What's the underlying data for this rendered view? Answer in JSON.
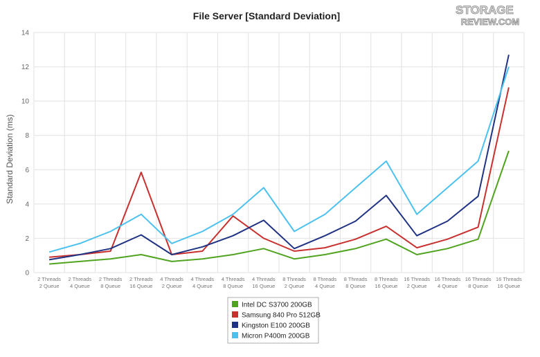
{
  "logo": {
    "line1": "STORAGE",
    "line2": "REVIEW.COM"
  },
  "chart_data": {
    "type": "line",
    "title": "File Server [Standard Deviation]",
    "xlabel": "",
    "ylabel": "Standard Deviation (ms)",
    "ylim": [
      0,
      14
    ],
    "yticks": [
      0,
      2,
      4,
      6,
      8,
      10,
      12,
      14
    ],
    "grid": true,
    "legend_position": "bottom-center",
    "categories": [
      [
        "2 Threads",
        "2 Queue"
      ],
      [
        "2 Threads",
        "4 Queue"
      ],
      [
        "2 Threads",
        "8 Queue"
      ],
      [
        "2 Threads",
        "16 Queue"
      ],
      [
        "4 Threads",
        "2 Queue"
      ],
      [
        "4 Threads",
        "4 Queue"
      ],
      [
        "4 Threads",
        "8 Queue"
      ],
      [
        "4 Threads",
        "16 Queue"
      ],
      [
        "8 Threads",
        "2 Queue"
      ],
      [
        "8 Threads",
        "4 Queue"
      ],
      [
        "8 Threads",
        "8 Queue"
      ],
      [
        "8 Threads",
        "16 Queue"
      ],
      [
        "16 Threads",
        "2 Queue"
      ],
      [
        "16 Threads",
        "4 Queue"
      ],
      [
        "16 Threads",
        "8 Queue"
      ],
      [
        "16 Threads",
        "16 Queue"
      ]
    ],
    "series": [
      {
        "name": "Intel DC S3700 200GB",
        "color": "#4fa31e",
        "values": [
          0.5,
          0.65,
          0.8,
          1.05,
          0.65,
          0.8,
          1.05,
          1.4,
          0.8,
          1.05,
          1.4,
          1.95,
          1.05,
          1.4,
          1.95,
          7.1
        ]
      },
      {
        "name": "Samsung 840 Pro 512GB",
        "color": "#c8302e",
        "values": [
          0.9,
          1.05,
          1.25,
          5.85,
          1.05,
          1.25,
          3.3,
          2.0,
          1.25,
          1.45,
          1.95,
          2.7,
          1.45,
          1.95,
          2.65,
          10.8
        ]
      },
      {
        "name": "Kingston E100 200GB",
        "color": "#1f3284",
        "values": [
          0.75,
          1.05,
          1.4,
          2.2,
          1.05,
          1.5,
          2.15,
          3.05,
          1.4,
          2.15,
          3.0,
          4.5,
          2.15,
          3.0,
          4.45,
          12.7
        ]
      },
      {
        "name": "Micron P400m 200GB",
        "color": "#4cc1ee",
        "values": [
          1.2,
          1.7,
          2.4,
          3.4,
          1.7,
          2.4,
          3.4,
          4.95,
          2.4,
          3.4,
          4.95,
          6.5,
          3.4,
          4.95,
          6.5,
          12.0
        ]
      }
    ]
  }
}
